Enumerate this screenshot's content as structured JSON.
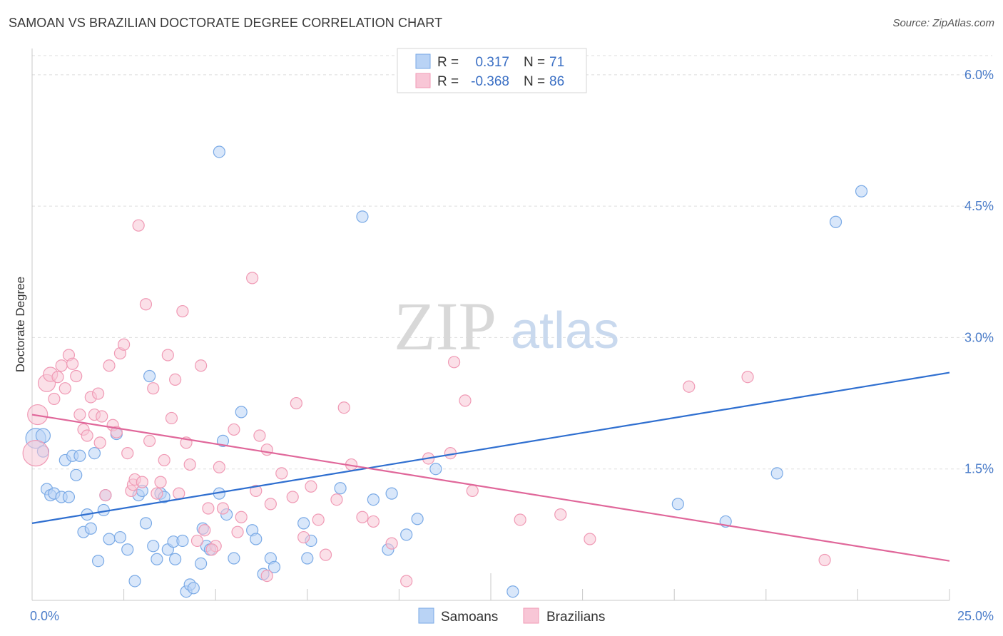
{
  "chart_data": {
    "type": "scatter",
    "title": "SAMOAN VS BRAZILIAN DOCTORATE DEGREE CORRELATION CHART",
    "source": "Source: ZipAtlas.com",
    "xlabel": "",
    "ylabel": "Doctorate Degree",
    "xlim": [
      0,
      25
    ],
    "ylim": [
      0,
      6.3
    ],
    "x_tick_labels": [
      {
        "value": 0,
        "label": "0.0%"
      },
      {
        "value": 25,
        "label": "25.0%"
      }
    ],
    "y_tick_labels": [
      {
        "value": 1.5,
        "label": "1.5%"
      },
      {
        "value": 3.0,
        "label": "3.0%"
      },
      {
        "value": 4.5,
        "label": "4.5%"
      },
      {
        "value": 6.0,
        "label": "6.0%"
      }
    ],
    "watermark": {
      "part1": "ZIP",
      "part2": "atlas"
    },
    "legend": {
      "r_label": "R =",
      "n_label": "N =",
      "entries": [
        {
          "r": "0.317",
          "n": "71"
        },
        {
          "r": "-0.368",
          "n": "86"
        }
      ]
    },
    "series": [
      {
        "name": "Samoans",
        "color": "#7aaae6",
        "fill": "#b9d3f5",
        "line_color": "#2f6fd0",
        "trend": {
          "x0": 0,
          "y0": 0.88,
          "x1": 25,
          "y1": 2.6
        },
        "points": [
          [
            0.1,
            1.85,
            14
          ],
          [
            0.3,
            1.88,
            10
          ],
          [
            0.3,
            1.7,
            8
          ],
          [
            0.4,
            1.27,
            8
          ],
          [
            0.5,
            1.2,
            8
          ],
          [
            0.6,
            1.22,
            8
          ],
          [
            0.8,
            1.18,
            8
          ],
          [
            0.9,
            1.6,
            8
          ],
          [
            1.0,
            1.18,
            8
          ],
          [
            1.1,
            1.65,
            8
          ],
          [
            1.2,
            1.43,
            8
          ],
          [
            1.3,
            1.65,
            8
          ],
          [
            1.4,
            0.78,
            8
          ],
          [
            1.5,
            0.98,
            8
          ],
          [
            1.6,
            0.82,
            8
          ],
          [
            1.7,
            1.68,
            8
          ],
          [
            1.8,
            0.45,
            8
          ],
          [
            1.95,
            1.03,
            8
          ],
          [
            2.0,
            1.2,
            8
          ],
          [
            2.1,
            0.7,
            8
          ],
          [
            2.3,
            1.9,
            8
          ],
          [
            2.4,
            0.72,
            8
          ],
          [
            2.6,
            0.58,
            8
          ],
          [
            2.8,
            0.22,
            8
          ],
          [
            2.9,
            1.2,
            8
          ],
          [
            3.0,
            1.25,
            8
          ],
          [
            3.1,
            0.88,
            8
          ],
          [
            3.2,
            2.56,
            8
          ],
          [
            3.3,
            0.62,
            8
          ],
          [
            3.4,
            0.47,
            8
          ],
          [
            3.5,
            1.22,
            8
          ],
          [
            3.6,
            1.18,
            8
          ],
          [
            3.7,
            0.58,
            8
          ],
          [
            3.85,
            0.67,
            8
          ],
          [
            3.9,
            0.47,
            8
          ],
          [
            4.1,
            0.68,
            8
          ],
          [
            4.2,
            0.1,
            8
          ],
          [
            4.3,
            0.18,
            8
          ],
          [
            4.4,
            0.14,
            8
          ],
          [
            4.6,
            0.42,
            8
          ],
          [
            4.65,
            0.82,
            8
          ],
          [
            4.75,
            0.62,
            8
          ],
          [
            4.85,
            0.58,
            8
          ],
          [
            5.1,
            1.22,
            8
          ],
          [
            5.1,
            5.12,
            8
          ],
          [
            5.2,
            1.82,
            8
          ],
          [
            5.3,
            0.98,
            8
          ],
          [
            5.5,
            0.48,
            8
          ],
          [
            5.7,
            2.15,
            8
          ],
          [
            6.0,
            0.8,
            8
          ],
          [
            6.1,
            0.7,
            8
          ],
          [
            6.3,
            0.3,
            8
          ],
          [
            6.5,
            0.48,
            8
          ],
          [
            6.6,
            0.38,
            8
          ],
          [
            7.4,
            0.88,
            8
          ],
          [
            7.5,
            0.48,
            8
          ],
          [
            8.4,
            1.28,
            8
          ],
          [
            9.0,
            4.38,
            8
          ],
          [
            9.3,
            1.15,
            8
          ],
          [
            9.7,
            0.58,
            8
          ],
          [
            9.8,
            1.22,
            8
          ],
          [
            10.2,
            0.75,
            8
          ],
          [
            10.5,
            0.93,
            8
          ],
          [
            11.0,
            1.5,
            8
          ],
          [
            13.1,
            0.1,
            8
          ],
          [
            17.6,
            1.1,
            8
          ],
          [
            18.9,
            0.9,
            8
          ],
          [
            20.3,
            1.45,
            8
          ],
          [
            21.9,
            4.32,
            8
          ],
          [
            22.6,
            4.67,
            8
          ],
          [
            7.6,
            0.68,
            8
          ]
        ]
      },
      {
        "name": "Brazilians",
        "color": "#f09ab5",
        "fill": "#f8c6d6",
        "line_color": "#e0679a",
        "trend": {
          "x0": 0,
          "y0": 2.12,
          "x1": 25,
          "y1": 0.45
        },
        "points": [
          [
            0.1,
            1.68,
            18
          ],
          [
            0.15,
            2.12,
            14
          ],
          [
            0.4,
            2.48,
            12
          ],
          [
            0.5,
            2.58,
            10
          ],
          [
            0.6,
            2.3,
            8
          ],
          [
            0.7,
            2.55,
            8
          ],
          [
            0.8,
            2.68,
            8
          ],
          [
            0.9,
            2.42,
            8
          ],
          [
            1.0,
            2.8,
            8
          ],
          [
            1.1,
            2.7,
            8
          ],
          [
            1.2,
            2.56,
            8
          ],
          [
            1.3,
            2.12,
            8
          ],
          [
            1.4,
            1.95,
            8
          ],
          [
            1.5,
            1.88,
            8
          ],
          [
            1.6,
            2.32,
            8
          ],
          [
            1.7,
            2.12,
            8
          ],
          [
            1.8,
            2.36,
            8
          ],
          [
            1.85,
            1.8,
            8
          ],
          [
            1.9,
            2.1,
            8
          ],
          [
            2.0,
            1.2,
            8
          ],
          [
            2.1,
            2.68,
            8
          ],
          [
            2.2,
            2.0,
            8
          ],
          [
            2.3,
            1.92,
            8
          ],
          [
            2.4,
            2.82,
            8
          ],
          [
            2.5,
            2.92,
            8
          ],
          [
            2.6,
            1.68,
            8
          ],
          [
            2.7,
            1.25,
            8
          ],
          [
            2.75,
            1.32,
            8
          ],
          [
            2.8,
            1.38,
            8
          ],
          [
            2.9,
            4.28,
            8
          ],
          [
            3.0,
            1.35,
            8
          ],
          [
            3.1,
            3.38,
            8
          ],
          [
            3.2,
            1.82,
            8
          ],
          [
            3.3,
            2.42,
            8
          ],
          [
            3.4,
            1.22,
            8
          ],
          [
            3.5,
            1.35,
            8
          ],
          [
            3.6,
            1.6,
            8
          ],
          [
            3.7,
            2.8,
            8
          ],
          [
            3.8,
            2.08,
            8
          ],
          [
            3.9,
            2.52,
            8
          ],
          [
            4.0,
            1.22,
            8
          ],
          [
            4.1,
            3.3,
            8
          ],
          [
            4.2,
            1.8,
            8
          ],
          [
            4.3,
            1.55,
            8
          ],
          [
            4.5,
            0.68,
            8
          ],
          [
            4.6,
            2.68,
            8
          ],
          [
            4.7,
            0.8,
            8
          ],
          [
            4.8,
            1.05,
            8
          ],
          [
            5.0,
            0.62,
            8
          ],
          [
            5.1,
            1.52,
            8
          ],
          [
            5.2,
            1.05,
            8
          ],
          [
            5.5,
            1.95,
            8
          ],
          [
            5.6,
            0.78,
            8
          ],
          [
            5.7,
            0.95,
            8
          ],
          [
            6.0,
            3.68,
            8
          ],
          [
            6.1,
            1.25,
            8
          ],
          [
            6.2,
            1.88,
            8
          ],
          [
            6.4,
            1.72,
            8
          ],
          [
            6.5,
            1.1,
            8
          ],
          [
            6.8,
            1.45,
            8
          ],
          [
            7.1,
            1.18,
            8
          ],
          [
            7.2,
            2.25,
            8
          ],
          [
            7.4,
            0.72,
            8
          ],
          [
            7.6,
            1.3,
            8
          ],
          [
            7.8,
            0.92,
            8
          ],
          [
            8.0,
            0.52,
            8
          ],
          [
            8.3,
            1.15,
            8
          ],
          [
            8.5,
            2.2,
            8
          ],
          [
            8.7,
            1.55,
            8
          ],
          [
            9.0,
            0.95,
            8
          ],
          [
            9.3,
            0.9,
            8
          ],
          [
            9.8,
            0.65,
            8
          ],
          [
            10.2,
            0.22,
            8
          ],
          [
            10.8,
            1.62,
            8
          ],
          [
            11.4,
            1.68,
            8
          ],
          [
            11.5,
            2.72,
            8
          ],
          [
            11.8,
            2.28,
            8
          ],
          [
            12.0,
            1.25,
            8
          ],
          [
            13.3,
            0.92,
            8
          ],
          [
            14.4,
            0.98,
            8
          ],
          [
            15.2,
            0.7,
            8
          ],
          [
            17.9,
            2.44,
            8
          ],
          [
            19.5,
            2.55,
            8
          ],
          [
            21.6,
            0.46,
            8
          ],
          [
            6.4,
            0.28,
            8
          ],
          [
            4.9,
            0.58,
            8
          ]
        ]
      }
    ]
  }
}
